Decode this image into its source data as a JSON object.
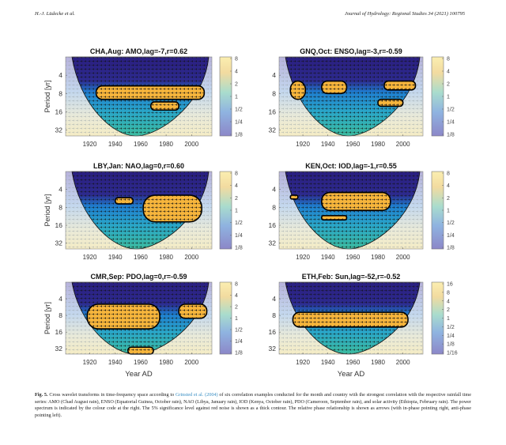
{
  "header": {
    "authors": "H.-J. Lüdecke et al.",
    "journal": "Journal of Hydrology: Regional Studies 34 (2021) 100795"
  },
  "colors": {
    "low": "#352a87",
    "mid_blue": "#1f8fd6",
    "mid_green": "#3cbca0",
    "high": "#f9e13c",
    "orange": "#f6b53c",
    "contour": "#000000",
    "link": "#3a8fc4"
  },
  "chart_data": [
    {
      "type": "heatmap",
      "title": "CHA,Aug: AMO,lag=-7,r=0.62",
      "xlabel": "",
      "ylabel": "Period [yr]",
      "xlim": [
        1901,
        2016
      ],
      "x_ticks": [
        "1920",
        "1940",
        "1960",
        "1980",
        "2000"
      ],
      "y_ticks": [
        "4",
        "8",
        "16",
        "32"
      ],
      "colorbar_ticks": [
        "8",
        "4",
        "2",
        "1",
        "1/2",
        "1/4",
        "1/8"
      ],
      "significant_regions": [
        {
          "year_range": [
            1925,
            2010
          ],
          "period_range": [
            6,
            10
          ]
        },
        {
          "year_range": [
            1968,
            1990
          ],
          "period_range": [
            11,
            15
          ]
        }
      ]
    },
    {
      "type": "heatmap",
      "title": "GNQ,Oct: ENSO,lag=-3,r=-0.59",
      "xlabel": "",
      "ylabel": "",
      "xlim": [
        1901,
        2016
      ],
      "x_ticks": [
        "1920",
        "1940",
        "1960",
        "1980",
        "2000"
      ],
      "y_ticks": [
        "4",
        "8",
        "16",
        "32"
      ],
      "colorbar_ticks": [
        "8",
        "4",
        "2",
        "1",
        "1/2",
        "1/4",
        "1/8"
      ],
      "significant_regions": [
        {
          "year_range": [
            1910,
            1922
          ],
          "period_range": [
            5,
            10
          ]
        },
        {
          "year_range": [
            1935,
            1955
          ],
          "period_range": [
            5,
            8
          ]
        },
        {
          "year_range": [
            1985,
            2010
          ],
          "period_range": [
            5,
            7
          ]
        },
        {
          "year_range": [
            1980,
            2000
          ],
          "period_range": [
            10,
            13
          ]
        }
      ]
    },
    {
      "type": "heatmap",
      "title": "LBY,Jan: NAO,lag=0,r=0.60",
      "xlabel": "",
      "ylabel": "Period [yr]",
      "xlim": [
        1901,
        2016
      ],
      "x_ticks": [
        "1920",
        "1940",
        "1960",
        "1980",
        "2000"
      ],
      "y_ticks": [
        "4",
        "8",
        "16",
        "32"
      ],
      "colorbar_ticks": [
        "8",
        "4",
        "2",
        "1",
        "1/2",
        "1/4",
        "1/8"
      ],
      "significant_regions": [
        {
          "year_range": [
            1940,
            1954
          ],
          "period_range": [
            5.5,
            7
          ]
        },
        {
          "year_range": [
            1962,
            2008
          ],
          "period_range": [
            5,
            14
          ]
        }
      ]
    },
    {
      "type": "heatmap",
      "title": "KEN,Oct: IOD,lag=-1,r=0.55",
      "xlabel": "",
      "ylabel": "",
      "xlim": [
        1901,
        2016
      ],
      "x_ticks": [
        "1920",
        "1940",
        "1960",
        "1980",
        "2000"
      ],
      "y_ticks": [
        "4",
        "8",
        "16",
        "32"
      ],
      "colorbar_ticks": [
        "8",
        "4",
        "2",
        "1",
        "1/2",
        "1/4",
        "1/8"
      ],
      "significant_regions": [
        {
          "year_range": [
            1910,
            1916
          ],
          "period_range": [
            5,
            5.8
          ]
        },
        {
          "year_range": [
            1935,
            1990
          ],
          "period_range": [
            4.5,
            9
          ]
        },
        {
          "year_range": [
            1935,
            1955
          ],
          "period_range": [
            11,
            13
          ]
        }
      ]
    },
    {
      "type": "heatmap",
      "title": "CMR,Sep: PDO,lag=0,r=-0.59",
      "xlabel": "Year AD",
      "ylabel": "Period [yr]",
      "xlim": [
        1901,
        2016
      ],
      "x_ticks": [
        "1920",
        "1940",
        "1960",
        "1980",
        "2000"
      ],
      "y_ticks": [
        "4",
        "8",
        "16",
        "32"
      ],
      "colorbar_ticks": [
        "8",
        "4",
        "2",
        "1",
        "1/2",
        "1/4",
        "1/8"
      ],
      "significant_regions": [
        {
          "year_range": [
            1918,
            1975
          ],
          "period_range": [
            5,
            14
          ]
        },
        {
          "year_range": [
            1990,
            2012
          ],
          "period_range": [
            5,
            9
          ]
        },
        {
          "year_range": [
            1950,
            1970
          ],
          "period_range": [
            30,
            40
          ]
        }
      ]
    },
    {
      "type": "heatmap",
      "title": "ETH,Feb: Sun,lag=-52,r=-0.52",
      "xlabel": "Year AD",
      "ylabel": "",
      "xlim": [
        1901,
        2016
      ],
      "x_ticks": [
        "1920",
        "1940",
        "1960",
        "1980",
        "2000"
      ],
      "y_ticks": [
        "4",
        "8",
        "16",
        "32"
      ],
      "colorbar_ticks": [
        "16",
        "8",
        "4",
        "2",
        "1",
        "1/2",
        "1/4",
        "1/8",
        "1/16"
      ],
      "significant_regions": [
        {
          "year_range": [
            1912,
            2004
          ],
          "period_range": [
            7,
            13
          ]
        }
      ]
    }
  ],
  "caption": {
    "label": "Fig. 5.",
    "text_before_link": " Cross wavelet transforms in time-frequency space according to ",
    "link": "Grinsted et al. (2004)",
    "text_after_link": " of six correlation examples conducted for the month and country with the strongest correlation with the respective rainfall time series: AMO (Chad August rain), ENSO (Equatorial Guinea, October rain), NAO (Libya, January rain), IOD (Kenya, October rain), PDO (Cameroon, September rain), and solar activity (Ethiopia, February rain). The power spectrum is indicated by the colour code at the right. The 5% significance level against red noise is shown as a thick contour. The relative phase relationship is shown as arrows (with in-phase pointing right, anti-phase pointing left)."
  }
}
